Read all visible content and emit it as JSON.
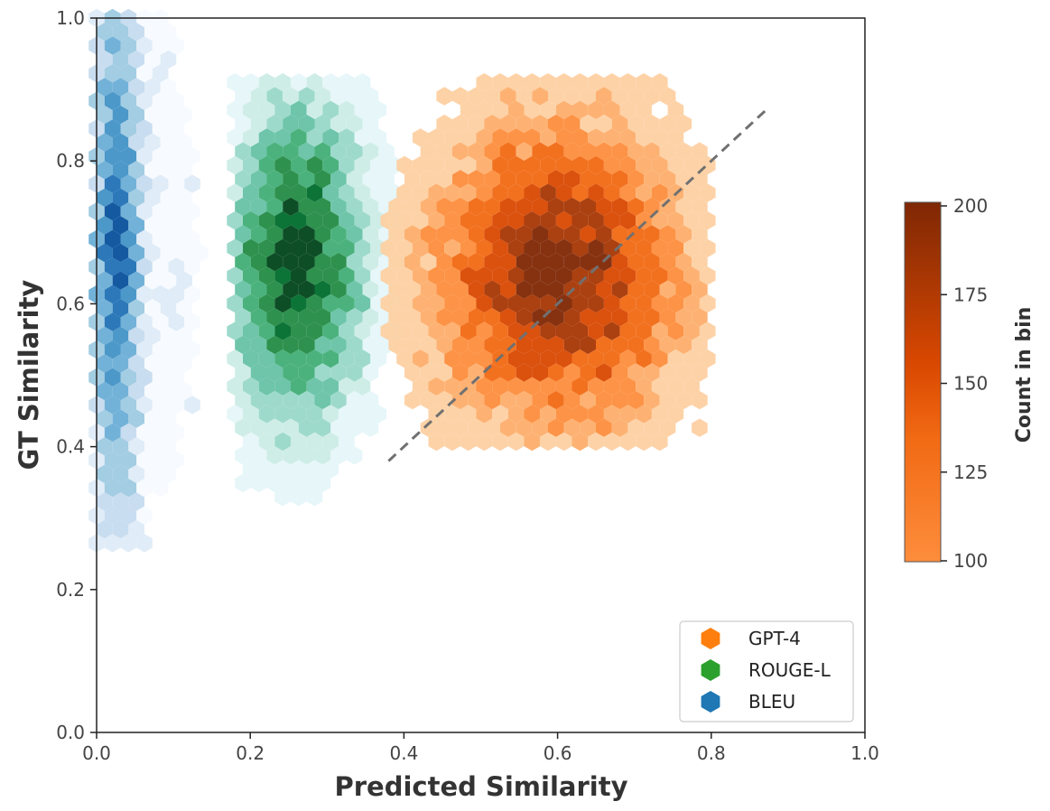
{
  "chart_data": {
    "type": "hexbin",
    "xlabel": "Predicted Similarity",
    "ylabel": "GT Similarity",
    "xlim": [
      0.0,
      1.0
    ],
    "ylim": [
      0.0,
      1.0
    ],
    "xticks": [
      "0.0",
      "0.2",
      "0.4",
      "0.6",
      "0.8",
      "1.0"
    ],
    "yticks": [
      "0.0",
      "0.2",
      "0.4",
      "0.6",
      "0.8",
      "1.0"
    ],
    "grid": false,
    "legend_position": "bottom-right",
    "reference_line": {
      "style": "dashed",
      "color": "#707070",
      "x": [
        0.38,
        0.875
      ],
      "y": [
        0.38,
        0.875
      ]
    },
    "colorbar": {
      "label": "Count in bin",
      "range": [
        100,
        200
      ],
      "ticks": [
        "100",
        "125",
        "150",
        "175",
        "200"
      ],
      "colors": [
        "#fd8d3c",
        "#e6550d",
        "#a63603",
        "#7f2704"
      ]
    },
    "series": [
      {
        "name": "GPT-4",
        "legend_color": "#ff7f0e",
        "palette": [
          "#fdd0a2",
          "#fdae6b",
          "#fd8d3c",
          "#f16913",
          "#d94801",
          "#a63603",
          "#7f2704"
        ],
        "x_center": 0.6,
        "y_center": 0.64,
        "x_range": [
          0.38,
          0.8
        ],
        "y_range": [
          0.39,
          0.91
        ]
      },
      {
        "name": "ROUGE-L",
        "legend_color": "#2ca02c",
        "palette": [
          "#e5f5f9",
          "#ccece6",
          "#99d8c9",
          "#66c2a4",
          "#41ae76",
          "#238b45",
          "#006d2c",
          "#00441b"
        ],
        "x_center": 0.26,
        "y_center": 0.66,
        "x_range": [
          0.18,
          0.42
        ],
        "y_range": [
          0.32,
          0.91
        ]
      },
      {
        "name": "BLEU",
        "legend_color": "#1f77b4",
        "palette": [
          "#f7fbff",
          "#deebf7",
          "#c6dbef",
          "#9ecae1",
          "#6baed6",
          "#4292c6",
          "#2171b5",
          "#08519c",
          "#08306b"
        ],
        "x_center": 0.02,
        "y_center": 0.68,
        "x_range": [
          0.0,
          0.2
        ],
        "y_range": [
          0.25,
          1.0
        ]
      }
    ]
  }
}
